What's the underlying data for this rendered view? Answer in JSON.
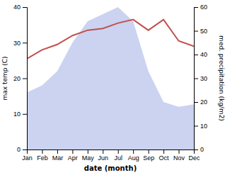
{
  "chart_data": {
    "type": "line",
    "xlabel": "date (month)",
    "ylabel": "max temp (C)",
    "y2label": "med. precipitation (kg/m2)",
    "categories": [
      "Jan",
      "Feb",
      "Mar",
      "Apr",
      "May",
      "Jun",
      "Jul",
      "Aug",
      "Sep",
      "Oct",
      "Nov",
      "Dec"
    ],
    "series": [
      {
        "type": "area",
        "axis": "y2",
        "color": "#c5cef0",
        "values": [
          24,
          27,
          33,
          45,
          54,
          57,
          60,
          54,
          33,
          20,
          18,
          19
        ]
      },
      {
        "type": "line",
        "color": "#c0504d",
        "values": [
          25.5,
          28.0,
          29.5,
          32.0,
          33.5,
          34.0,
          35.5,
          36.5,
          33.5,
          36.5,
          30.5,
          29.0
        ]
      }
    ],
    "ylim": [
      0,
      40
    ],
    "yticks": [
      0,
      10,
      20,
      30,
      40
    ],
    "y2lim": [
      0,
      60
    ],
    "y2ticks": [
      0,
      10,
      20,
      30,
      40,
      50,
      60
    ],
    "grid": false
  }
}
